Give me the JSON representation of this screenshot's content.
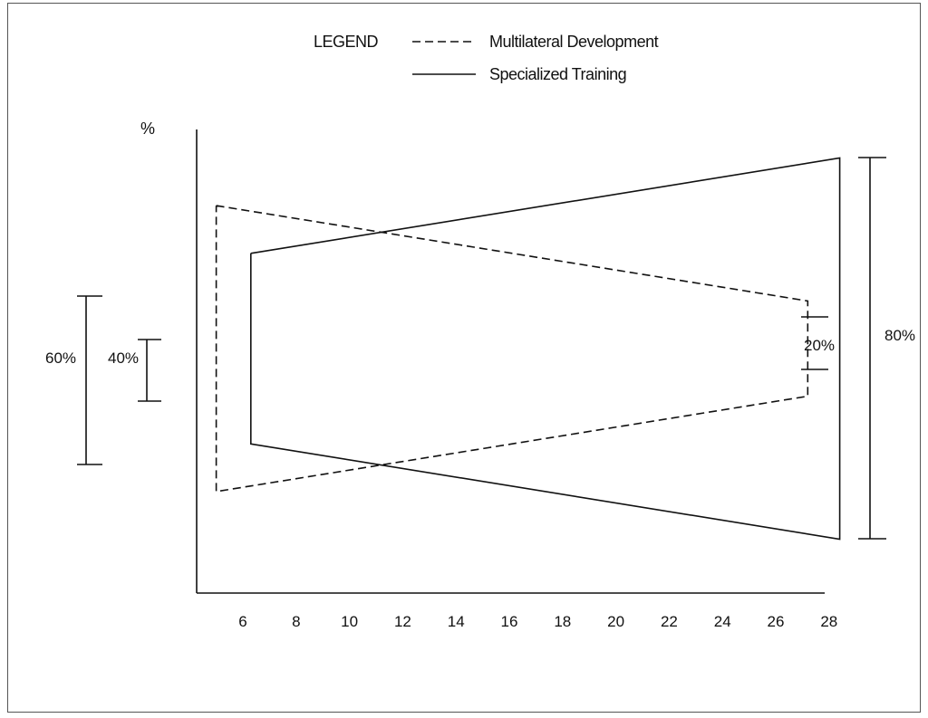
{
  "legend": {
    "title": "LEGEND",
    "items": [
      {
        "label": "Multilateral Development",
        "style": "dashed"
      },
      {
        "label": "Specialized Training",
        "style": "solid"
      }
    ]
  },
  "chart_data": {
    "type": "line",
    "title": "",
    "ylabel": "%",
    "xlabel": "",
    "x_ticks": [
      "6",
      "8",
      "10",
      "12",
      "14",
      "16",
      "18",
      "20",
      "22",
      "24",
      "26",
      "28"
    ],
    "xlim": [
      4.5,
      30
    ],
    "grid": false,
    "legend_position": "top-center",
    "series": [
      {
        "name": "Multilateral Development",
        "style": "dashed",
        "start_age": 5,
        "end_age": 27.2,
        "start_width_pct": 60,
        "end_width_pct": 20
      },
      {
        "name": "Specialized Training",
        "style": "solid",
        "start_age": 6.3,
        "end_age": 28.4,
        "start_width_pct": 40,
        "end_width_pct": 80
      }
    ],
    "brackets": [
      {
        "label": "60%",
        "side": "left",
        "value": 60
      },
      {
        "label": "40%",
        "side": "left",
        "value": 40
      },
      {
        "label": "20%",
        "side": "right",
        "value": 20
      },
      {
        "label": "80%",
        "side": "right",
        "value": 80
      }
    ]
  }
}
